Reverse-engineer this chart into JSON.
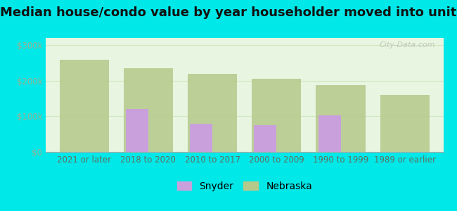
{
  "title": "Median house/condo value by year householder moved into unit",
  "categories": [
    "2021 or later",
    "2018 to 2020",
    "2010 to 2017",
    "2000 to 2009",
    "1990 to 1999",
    "1989 or earlier"
  ],
  "snyder_values": [
    null,
    120000,
    80000,
    75000,
    103000,
    null
  ],
  "nebraska_values": [
    258000,
    235000,
    220000,
    205000,
    187000,
    160000
  ],
  "snyder_color": "#c9a0dc",
  "nebraska_color": "#b5c98a",
  "background_outer": "#00e8e8",
  "background_inner": "#e8f5e0",
  "grid_color": "#d0e8c0",
  "ytick_color": "#a0b090",
  "xtick_color": "#607060",
  "yticks": [
    0,
    100000,
    200000,
    300000
  ],
  "ytick_labels": [
    "$0",
    "$100k",
    "$200k",
    "$300k"
  ],
  "ylim": [
    0,
    320000
  ],
  "bar_width": 0.35,
  "title_fontsize": 13,
  "tick_fontsize": 8.5,
  "legend_fontsize": 10,
  "watermark": "City-Data.com"
}
